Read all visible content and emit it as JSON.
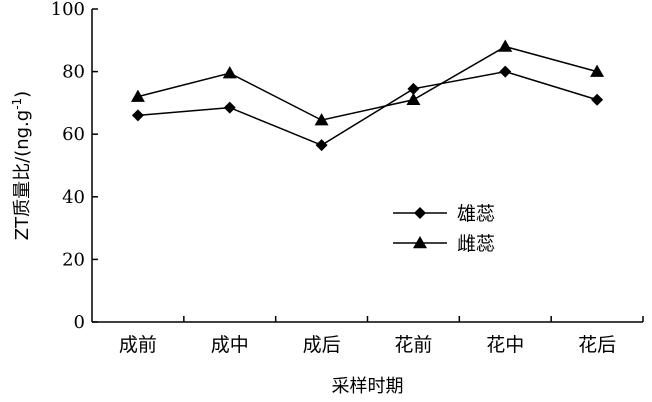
{
  "chart_data": {
    "type": "line",
    "title": "",
    "xlabel": "采样时期",
    "ylabel": "ZT质量比/(ng.g",
    "ylabel_sup": "-1",
    "ylabel_close": ")",
    "categories": [
      "成前",
      "成中",
      "成后",
      "花前",
      "花中",
      "花后"
    ],
    "yticks": [
      "0",
      "20",
      "40",
      "60",
      "80",
      "100"
    ],
    "ylim": [
      0,
      100
    ],
    "grid": false,
    "legend_position": "center-right",
    "series": [
      {
        "name": "雄蕊",
        "marker": "diamond",
        "color": "#000000",
        "values": [
          66,
          68.5,
          56.5,
          74.5,
          80,
          71
        ]
      },
      {
        "name": "雌蕊",
        "marker": "triangle",
        "color": "#000000",
        "values": [
          72,
          79.5,
          64.5,
          71,
          88,
          80
        ]
      }
    ]
  }
}
